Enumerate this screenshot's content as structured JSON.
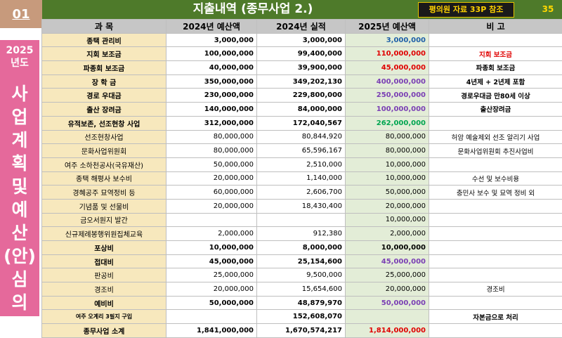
{
  "page_number": "01",
  "title": "지출내역 (종무사업 2.)",
  "reference_badge": "평의원 자료 33P 참조",
  "slide_number": "35",
  "side_panel": {
    "year_line1": "2025",
    "year_line2": "년도",
    "chars": [
      "사",
      "업",
      "계",
      "획",
      "및",
      "예",
      "산",
      "(안)",
      "심",
      "의"
    ]
  },
  "table": {
    "headers": [
      "과  목",
      "2024년 예산액",
      "2024년 실적",
      "2025년 예산액",
      "비    고"
    ],
    "rows": [
      {
        "item": "종택 관리비",
        "b2024": "3,000,000",
        "a2024": "3,000,000",
        "b2025": "3,000,000",
        "note": "",
        "color2025": "blue",
        "bold": true
      },
      {
        "item": "지회 보조금",
        "b2024": "100,000,000",
        "a2024": "99,400,000",
        "b2025": "110,000,000",
        "note": "지회 보조금",
        "color2025": "red",
        "bold": true,
        "note_color": "red"
      },
      {
        "item": "파종회 보조금",
        "b2024": "40,000,000",
        "a2024": "39,900,000",
        "b2025": "45,000,000",
        "note": "파종회 보조금",
        "color2025": "red",
        "bold": true
      },
      {
        "item": "장 학 금",
        "b2024": "350,000,000",
        "a2024": "349,202,130",
        "b2025": "400,000,000",
        "note": "4년제 + 2년제 포함",
        "color2025": "purple",
        "bold": true
      },
      {
        "item": "경로 우대금",
        "b2024": "230,000,000",
        "a2024": "229,800,000",
        "b2025": "250,000,000",
        "note": "경로우대금 만80세 이상",
        "color2025": "purple",
        "bold": true
      },
      {
        "item": "출산 장려금",
        "b2024": "140,000,000",
        "a2024": "84,000,000",
        "b2025": "100,000,000",
        "note": "출산장려금",
        "color2025": "purple",
        "bold": true
      },
      {
        "item": "유적보존, 선조현창 사업",
        "b2024": "312,000,000",
        "a2024": "172,040,567",
        "b2025": "262,000,000",
        "note": "",
        "color2025": "green",
        "bold": true
      },
      {
        "item": "선조현창사업",
        "b2024": "80,000,000",
        "a2024": "80,844,920",
        "b2025": "80,000,000",
        "note": "허암 예술제외 선조 알리기 사업",
        "color2025": "",
        "bold": false
      },
      {
        "item": "문화사업위원회",
        "b2024": "80,000,000",
        "a2024": "65,596,167",
        "b2025": "80,000,000",
        "note": "문화사업위원회 추진사업비",
        "color2025": "",
        "bold": false
      },
      {
        "item": "여주 소하천공사(국유재산)",
        "b2024": "50,000,000",
        "a2024": "2,510,000",
        "b2025": "10,000,000",
        "note": "",
        "color2025": "",
        "bold": false
      },
      {
        "item": "종택 해평사 보수비",
        "b2024": "20,000,000",
        "a2024": "1,140,000",
        "b2025": "10,000,000",
        "note": "수선 및 보수비용",
        "color2025": "",
        "bold": false
      },
      {
        "item": "경혜공주 묘역정비 등",
        "b2024": "60,000,000",
        "a2024": "2,606,700",
        "b2025": "50,000,000",
        "note": "충민사 보수 및 묘역 정비 외",
        "color2025": "",
        "bold": false
      },
      {
        "item": "기념품 및 선물비",
        "b2024": "20,000,000",
        "a2024": "18,430,400",
        "b2025": "20,000,000",
        "note": "",
        "color2025": "",
        "bold": false
      },
      {
        "item": "금오서원지 발간",
        "b2024": "",
        "a2024": "",
        "b2025": "10,000,000",
        "note": "",
        "color2025": "",
        "bold": false
      },
      {
        "item": "신규제례봉행위원집체교육",
        "b2024": "2,000,000",
        "a2024": "912,380",
        "b2025": "2,000,000",
        "note": "",
        "color2025": "",
        "bold": false
      },
      {
        "item": "포상비",
        "b2024": "10,000,000",
        "a2024": "8,000,000",
        "b2025": "10,000,000",
        "note": "",
        "color2025": "",
        "bold": true
      },
      {
        "item": "접대비",
        "b2024": "45,000,000",
        "a2024": "25,154,600",
        "b2025": "45,000,000",
        "note": "",
        "color2025": "purple",
        "bold": true
      },
      {
        "item": "판공비",
        "b2024": "25,000,000",
        "a2024": "9,500,000",
        "b2025": "25,000,000",
        "note": "",
        "color2025": "",
        "bold": false
      },
      {
        "item": "경조비",
        "b2024": "20,000,000",
        "a2024": "15,654,600",
        "b2025": "20,000,000",
        "note": "경조비",
        "color2025": "",
        "bold": false
      },
      {
        "item": "예비비",
        "b2024": "50,000,000",
        "a2024": "48,879,970",
        "b2025": "50,000,000",
        "note": "",
        "color2025": "purple",
        "bold": true
      },
      {
        "item": "여주 오계리 3필지 구입",
        "b2024": "",
        "a2024": "152,608,070",
        "b2025": "",
        "note": "자본금으로 처리",
        "color2025": "",
        "bold": true,
        "tiny": true
      },
      {
        "item": "종무사업 소계",
        "b2024": "1,841,000,000",
        "a2024": "1,670,574,217",
        "b2025": "1,814,000,000",
        "note": "",
        "color2025": "red",
        "bold": true
      }
    ]
  }
}
